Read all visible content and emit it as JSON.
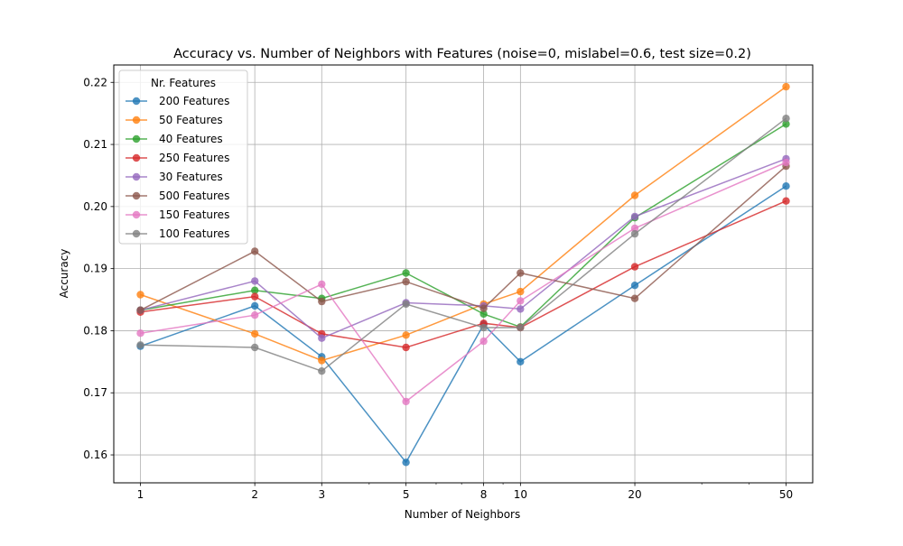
{
  "chart_data": {
    "type": "line",
    "title": "Accuracy vs. Number of Neighbors with Features (noise=0, mislabel=0.6, test size=0.2)",
    "xlabel": "Number of Neighbors",
    "ylabel": "Accuracy",
    "xscale": "log",
    "x": [
      1,
      2,
      3,
      5,
      8,
      10,
      20,
      50
    ],
    "x_tick_labels": [
      "1",
      "2",
      "3",
      "5",
      "8",
      "10",
      "20",
      "50"
    ],
    "ylim": [
      0.1555,
      0.2228
    ],
    "y_ticks": [
      0.16,
      0.17,
      0.18,
      0.19,
      0.2,
      0.21,
      0.22
    ],
    "y_tick_labels": [
      "0.16",
      "0.17",
      "0.18",
      "0.19",
      "0.20",
      "0.21",
      "0.22"
    ],
    "grid": true,
    "legend": {
      "title": "Nr. Features",
      "placement": "top-left"
    },
    "series": [
      {
        "name": "200 Features",
        "color": "#1f77b4",
        "values": [
          0.1775,
          0.184,
          0.1758,
          0.1588,
          0.181,
          0.175,
          0.1873,
          0.2033
        ]
      },
      {
        "name": "50 Features",
        "color": "#ff7f0e",
        "values": [
          0.1858,
          0.1795,
          0.1752,
          0.1793,
          0.1843,
          0.1863,
          0.2018,
          0.2193
        ]
      },
      {
        "name": "40 Features",
        "color": "#2ca02c",
        "values": [
          0.1833,
          0.1865,
          0.1852,
          0.1893,
          0.1827,
          0.1806,
          0.1982,
          0.2133
        ]
      },
      {
        "name": "250 Features",
        "color": "#d62728",
        "values": [
          0.183,
          0.1855,
          0.1795,
          0.1773,
          0.1812,
          0.1805,
          0.1903,
          0.2009
        ]
      },
      {
        "name": "30 Features",
        "color": "#9467bd",
        "values": [
          0.1833,
          0.188,
          0.1788,
          0.1845,
          0.184,
          0.1835,
          0.1984,
          0.2077
        ]
      },
      {
        "name": "500 Features",
        "color": "#8c564b",
        "values": [
          0.1833,
          0.1928,
          0.1847,
          0.1879,
          0.1836,
          0.1893,
          0.1852,
          0.2065
        ]
      },
      {
        "name": "150 Features",
        "color": "#e377c2",
        "values": [
          0.1796,
          0.1825,
          0.1875,
          0.1686,
          0.1783,
          0.1848,
          0.1965,
          0.2071
        ]
      },
      {
        "name": "100 Features",
        "color": "#7f7f7f",
        "values": [
          0.1777,
          0.1773,
          0.1735,
          0.1843,
          0.1805,
          0.1805,
          0.1956,
          0.2142
        ]
      }
    ]
  }
}
